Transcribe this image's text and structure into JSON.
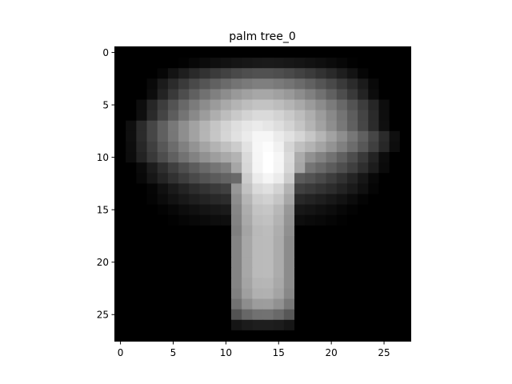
{
  "chart_data": {
    "type": "heatmap",
    "title": "palm tree_0",
    "xlabel": "",
    "ylabel": "",
    "colormap": "gray",
    "value_range": [
      0,
      1
    ],
    "grid": false,
    "legend": "none",
    "rows": 28,
    "cols": 28,
    "xlim": [
      -0.5,
      27.5
    ],
    "ylim": [
      27.5,
      -0.5
    ],
    "x_ticks": [
      0,
      5,
      10,
      15,
      20,
      25
    ],
    "y_ticks": [
      0,
      5,
      10,
      15,
      20,
      25
    ],
    "x_tick_labels": [
      "0",
      "5",
      "10",
      "15",
      "20",
      "25"
    ],
    "y_tick_labels": [
      "0",
      "5",
      "10",
      "15",
      "20",
      "25"
    ],
    "canopy_rows": [
      {
        "row": 1,
        "from": 6,
        "to": 22,
        "peak": 0.1
      },
      {
        "row": 2,
        "from": 4,
        "to": 23,
        "peak": 0.32
      },
      {
        "row": 3,
        "from": 3,
        "to": 24,
        "peak": 0.5
      },
      {
        "row": 4,
        "from": 3,
        "to": 24,
        "peak": 0.66
      },
      {
        "row": 5,
        "from": 2,
        "to": 25,
        "peak": 0.77
      },
      {
        "row": 6,
        "from": 2,
        "to": 25,
        "peak": 0.86
      },
      {
        "row": 7,
        "from": 1,
        "to": 25,
        "peak": 0.92
      },
      {
        "row": 8,
        "from": 1,
        "to": 26,
        "peak": 0.95
      },
      {
        "row": 9,
        "from": 1,
        "to": 26,
        "peak": 0.86
      },
      {
        "row": 10,
        "from": 1,
        "to": 25,
        "peak": 0.74
      },
      {
        "row": 11,
        "from": 2,
        "to": 25,
        "peak": 0.58
      },
      {
        "row": 12,
        "from": 2,
        "to": 24,
        "peak": 0.44
      },
      {
        "row": 13,
        "from": 3,
        "to": 24,
        "peak": 0.3
      },
      {
        "row": 14,
        "from": 3,
        "to": 23,
        "peak": 0.2
      },
      {
        "row": 15,
        "from": 4,
        "to": 22,
        "peak": 0.12
      },
      {
        "row": 16,
        "from": 5,
        "to": 21,
        "peak": 0.07
      }
    ],
    "trunk_rows": [
      {
        "row": 8,
        "center": 13.5,
        "half_width": 3.0,
        "peak": 0.97
      },
      {
        "row": 9,
        "center": 13.8,
        "half_width": 2.8,
        "peak": 0.99
      },
      {
        "row": 10,
        "center": 14.0,
        "half_width": 2.6,
        "peak": 1.0
      },
      {
        "row": 11,
        "center": 14.0,
        "half_width": 2.5,
        "peak": 1.0
      },
      {
        "row": 12,
        "center": 14.0,
        "half_width": 2.4,
        "peak": 0.96
      },
      {
        "row": 13,
        "center": 13.8,
        "half_width": 2.4,
        "peak": 0.88
      },
      {
        "row": 14,
        "center": 13.8,
        "half_width": 2.4,
        "peak": 0.82
      },
      {
        "row": 15,
        "center": 13.7,
        "half_width": 2.3,
        "peak": 0.78
      },
      {
        "row": 16,
        "center": 13.7,
        "half_width": 2.3,
        "peak": 0.76
      },
      {
        "row": 17,
        "center": 13.7,
        "half_width": 2.3,
        "peak": 0.74
      },
      {
        "row": 18,
        "center": 13.6,
        "half_width": 2.3,
        "peak": 0.74
      },
      {
        "row": 19,
        "center": 13.6,
        "half_width": 2.3,
        "peak": 0.74
      },
      {
        "row": 20,
        "center": 13.6,
        "half_width": 2.3,
        "peak": 0.74
      },
      {
        "row": 21,
        "center": 13.6,
        "half_width": 2.3,
        "peak": 0.74
      },
      {
        "row": 22,
        "center": 13.6,
        "half_width": 2.4,
        "peak": 0.72
      },
      {
        "row": 23,
        "center": 13.6,
        "half_width": 2.4,
        "peak": 0.7
      },
      {
        "row": 24,
        "center": 13.6,
        "half_width": 2.4,
        "peak": 0.62
      },
      {
        "row": 25,
        "center": 13.6,
        "half_width": 2.4,
        "peak": 0.45
      },
      {
        "row": 26,
        "center": 13.6,
        "half_width": 2.2,
        "peak": 0.12
      }
    ]
  }
}
